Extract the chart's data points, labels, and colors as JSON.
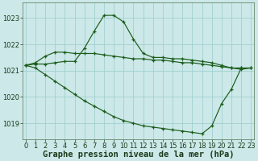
{
  "background_color": "#cce8e8",
  "grid_color": "#99cccc",
  "line_color": "#1a5c1a",
  "xlabel": "Graphe pression niveau de la mer (hPa)",
  "xlabel_fontsize": 7.5,
  "tick_fontsize": 6,
  "ytick_labels": [
    "1019",
    "1020",
    "1021",
    "1022",
    "1023"
  ],
  "yticks": [
    1019,
    1020,
    1021,
    1022,
    1023
  ],
  "xticks": [
    0,
    1,
    2,
    3,
    4,
    5,
    6,
    7,
    8,
    9,
    10,
    11,
    12,
    13,
    14,
    15,
    16,
    17,
    18,
    19,
    20,
    21,
    22,
    23
  ],
  "ylim": [
    1018.4,
    1023.6
  ],
  "xlim": [
    -0.3,
    23.3
  ],
  "line1_x": [
    0,
    1,
    2,
    3,
    4,
    5,
    6,
    7,
    8,
    9,
    10,
    11,
    12,
    13,
    14,
    15,
    16,
    17,
    18,
    19,
    20,
    21,
    22,
    23
  ],
  "line1_y": [
    1021.2,
    1021.3,
    1021.55,
    1021.7,
    1021.7,
    1021.65,
    1021.65,
    1021.65,
    1021.6,
    1021.55,
    1021.5,
    1021.45,
    1021.45,
    1021.4,
    1021.4,
    1021.35,
    1021.3,
    1021.3,
    1021.25,
    1021.2,
    1021.15,
    1021.1,
    1021.1,
    1021.1
  ],
  "line2_x": [
    0,
    1,
    2,
    3,
    4,
    5,
    6,
    7,
    8,
    9,
    10,
    11,
    12,
    13,
    14,
    15,
    16,
    17,
    18,
    19,
    20,
    21,
    22,
    23
  ],
  "line2_y": [
    1021.2,
    1021.25,
    1021.25,
    1021.3,
    1021.35,
    1021.35,
    1021.85,
    1022.5,
    1023.1,
    1023.1,
    1022.85,
    1022.2,
    1021.65,
    1021.5,
    1021.5,
    1021.45,
    1021.45,
    1021.4,
    1021.35,
    1021.3,
    1021.2,
    1021.1,
    1021.05,
    1021.1
  ],
  "line3_x": [
    0,
    1,
    2,
    3,
    4,
    5,
    6,
    7,
    8,
    9,
    10,
    11,
    12,
    13,
    14,
    15,
    16,
    17,
    18,
    19,
    20,
    21,
    22
  ],
  "line3_y": [
    1021.2,
    1021.1,
    1020.85,
    1020.6,
    1020.35,
    1020.1,
    1019.85,
    1019.65,
    1019.45,
    1019.25,
    1019.1,
    1019.0,
    1018.9,
    1018.85,
    1018.8,
    1018.75,
    1018.7,
    1018.65,
    1018.6,
    1018.9,
    1019.75,
    1020.3,
    1021.1
  ]
}
